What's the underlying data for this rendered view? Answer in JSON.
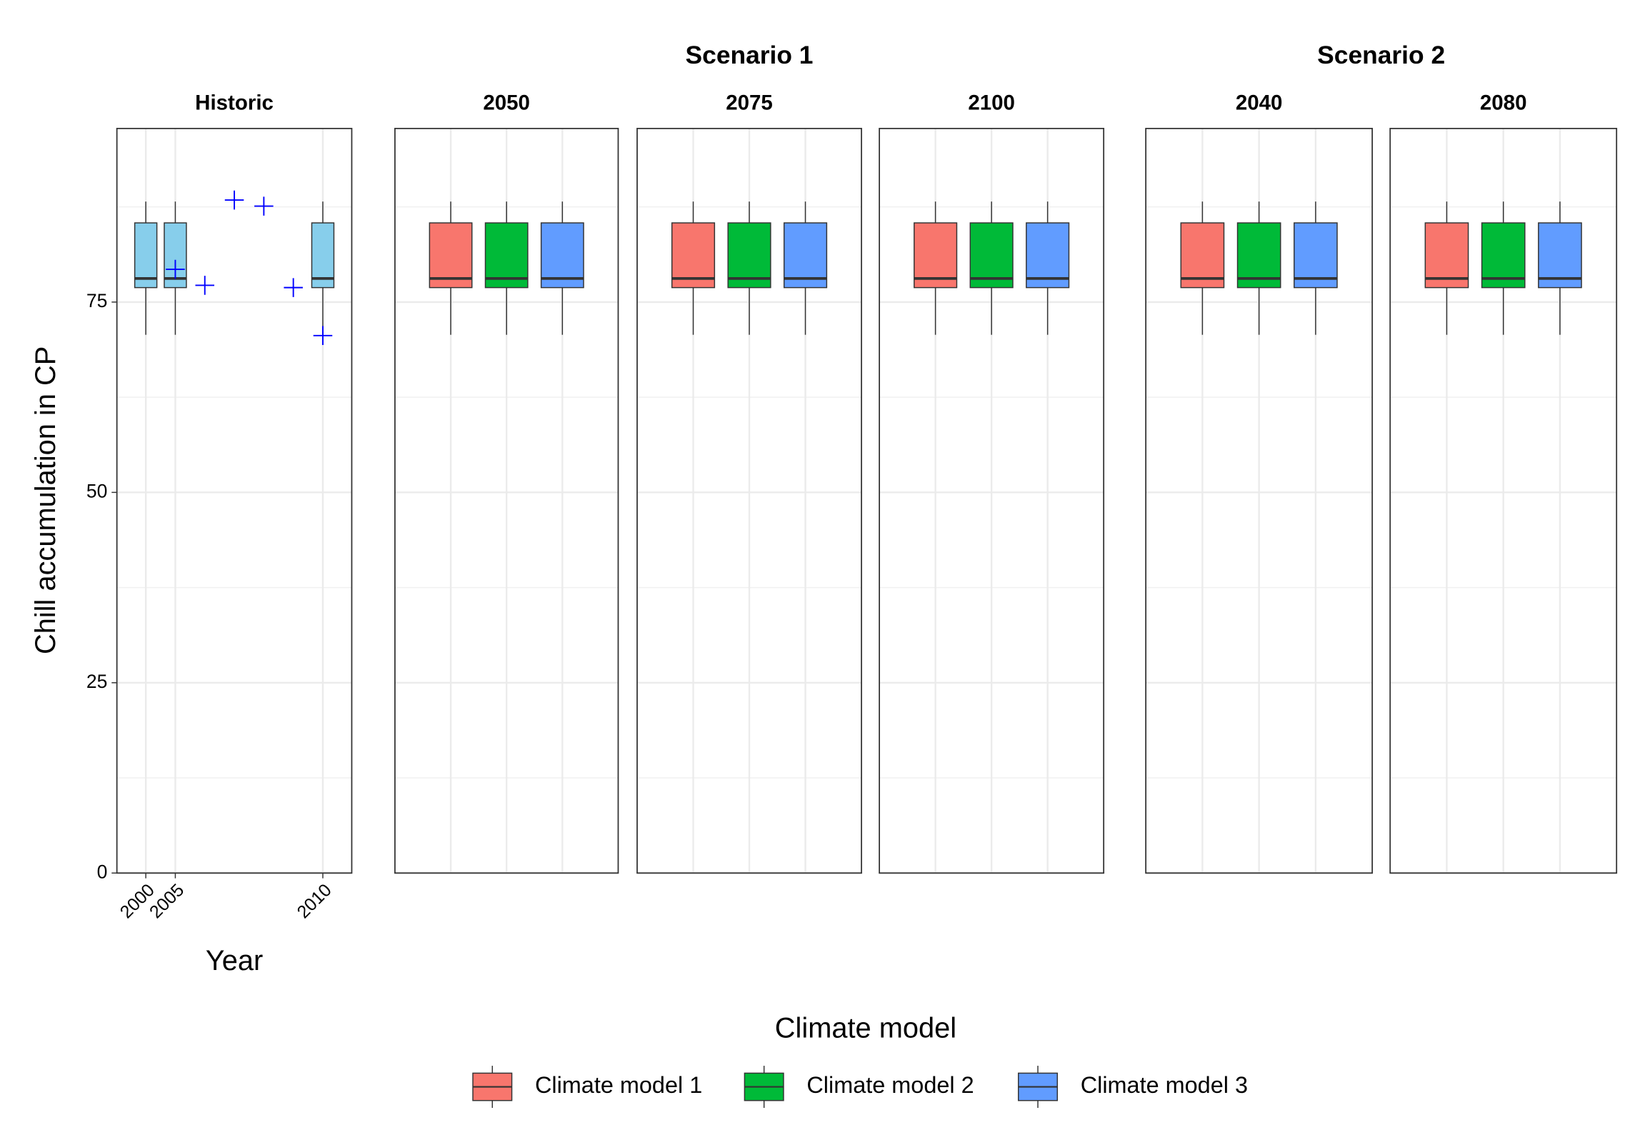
{
  "figure": {
    "y_label": "Chill accumulation in CP",
    "ylim": [
      0,
      97.8
    ],
    "yticks": [
      0,
      25,
      50,
      75
    ],
    "yminor": [
      12.5,
      37.5,
      62.5,
      87.5
    ],
    "grid": true,
    "legend": {
      "title": "Climate model",
      "position": "bottom",
      "entries": [
        {
          "name": "Climate model 1",
          "color": "#f8766d"
        },
        {
          "name": "Climate model 2",
          "color": "#00ba38"
        },
        {
          "name": "Climate model 3",
          "color": "#619cff"
        }
      ]
    }
  },
  "chart_data": [
    {
      "type": "box",
      "facet": "Historic",
      "scenario": null,
      "x_label": "Year",
      "categories": [
        "2000",
        "2005",
        null,
        null,
        null,
        null,
        "2010"
      ],
      "box_color": "#87ceeb",
      "boxes": {
        "low": [
          70.7,
          70.7,
          null,
          null,
          null,
          null,
          70.7
        ],
        "q1": [
          76.9,
          76.9,
          null,
          null,
          null,
          null,
          76.9
        ],
        "median": [
          78.1,
          78.1,
          null,
          null,
          null,
          null,
          78.1
        ],
        "q3": [
          85.4,
          85.4,
          null,
          null,
          null,
          null,
          85.4
        ],
        "high": [
          88.2,
          88.2,
          null,
          null,
          null,
          null,
          88.2
        ]
      },
      "points": {
        "color": "#0000ff",
        "values": [
          null,
          79.3,
          77.2,
          88.4,
          87.6,
          76.9,
          70.6
        ]
      }
    },
    {
      "type": "box",
      "facet": "2050",
      "scenario": "Scenario 1",
      "boxes": {
        "low": [
          70.7,
          70.7,
          70.7
        ],
        "q1": [
          76.9,
          76.9,
          76.9
        ],
        "median": [
          78.1,
          78.1,
          78.1
        ],
        "q3": [
          85.4,
          85.4,
          85.4
        ],
        "high": [
          88.2,
          88.2,
          88.2
        ]
      }
    },
    {
      "type": "box",
      "facet": "2075",
      "scenario": "Scenario 1",
      "boxes": {
        "low": [
          70.7,
          70.7,
          70.7
        ],
        "q1": [
          76.9,
          76.9,
          76.9
        ],
        "median": [
          78.1,
          78.1,
          78.1
        ],
        "q3": [
          85.4,
          85.4,
          85.4
        ],
        "high": [
          88.2,
          88.2,
          88.2
        ]
      }
    },
    {
      "type": "box",
      "facet": "2100",
      "scenario": "Scenario 1",
      "boxes": {
        "low": [
          70.7,
          70.7,
          70.7
        ],
        "q1": [
          76.9,
          76.9,
          76.9
        ],
        "median": [
          78.1,
          78.1,
          78.1
        ],
        "q3": [
          85.4,
          85.4,
          85.4
        ],
        "high": [
          88.2,
          88.2,
          88.2
        ]
      }
    },
    {
      "type": "box",
      "facet": "2040",
      "scenario": "Scenario 2",
      "boxes": {
        "low": [
          70.7,
          70.7,
          70.7
        ],
        "q1": [
          76.9,
          76.9,
          76.9
        ],
        "median": [
          78.1,
          78.1,
          78.1
        ],
        "q3": [
          85.4,
          85.4,
          85.4
        ],
        "high": [
          88.2,
          88.2,
          88.2
        ]
      }
    },
    {
      "type": "box",
      "facet": "2080",
      "scenario": "Scenario 2",
      "boxes": {
        "low": [
          70.7,
          70.7,
          70.7
        ],
        "q1": [
          76.9,
          76.9,
          76.9
        ],
        "median": [
          78.1,
          78.1,
          78.1
        ],
        "q3": [
          85.4,
          85.4,
          85.4
        ],
        "high": [
          88.2,
          88.2,
          88.2
        ]
      }
    }
  ]
}
